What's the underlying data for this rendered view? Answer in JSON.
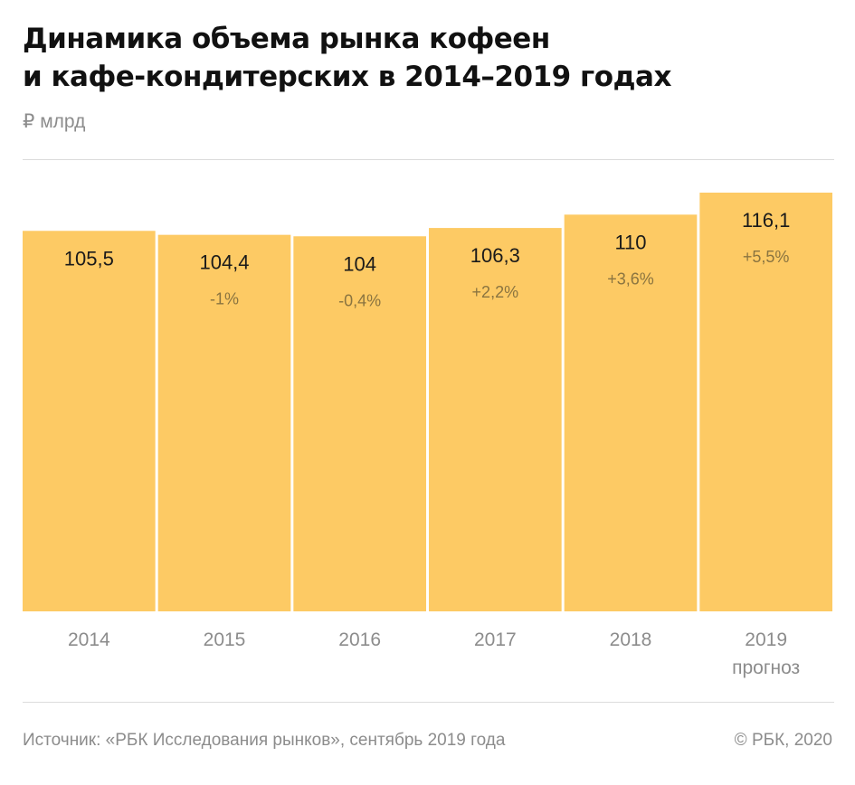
{
  "title_line1": "Динамика объема рынка кофеен",
  "title_line2": "и кафе-кондитерских в 2014–2019 годах",
  "unit": "₽ млрд",
  "source": "Источник: «РБК Исследования рынков», сентябрь 2019 года",
  "copyright": "© РБК, 2020",
  "chart_data": {
    "type": "bar",
    "title": "Динамика объема рынка кофеен и кафе-кондитерских в 2014–2019 годах",
    "ylabel": "₽ млрд",
    "categories": [
      "2014",
      "2015",
      "2016",
      "2017",
      "2018",
      "2019"
    ],
    "category_notes": [
      "",
      "",
      "",
      "",
      "",
      "прогноз"
    ],
    "values": [
      105.5,
      104.4,
      104,
      106.3,
      110,
      116.1
    ],
    "value_labels": [
      "105,5",
      "104,4",
      "104",
      "106,3",
      "110",
      "116,1"
    ],
    "change_labels": [
      "",
      "-1%",
      "-0,4%",
      "+2,2%",
      "+3,6%",
      "+5,5%"
    ],
    "bar_color": "#FDCA64",
    "label_color": "#1a1a1a",
    "change_color": "#8a7440",
    "tick_color": "#8c8c8c",
    "grid": false,
    "legend": "none"
  }
}
